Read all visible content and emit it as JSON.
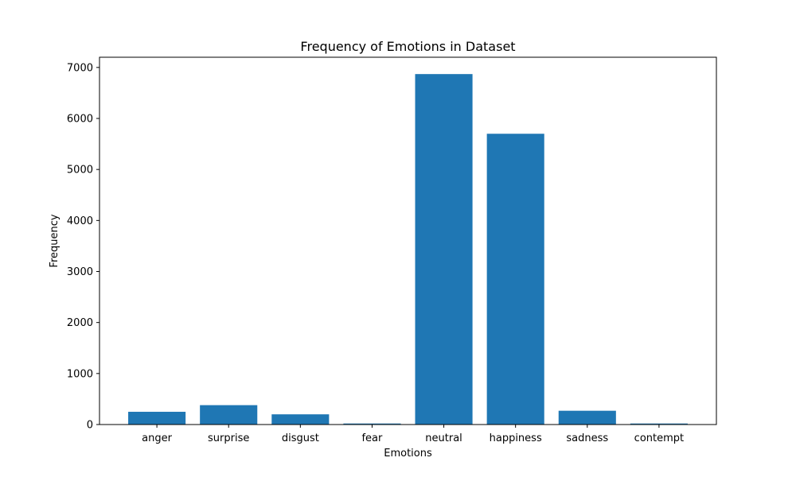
{
  "chart_data": {
    "type": "bar",
    "title": "Frequency of Emotions in Dataset",
    "xlabel": "Emotions",
    "ylabel": "Frequency",
    "categories": [
      "anger",
      "surprise",
      "disgust",
      "fear",
      "neutral",
      "happiness",
      "sadness",
      "contempt"
    ],
    "values": [
      250,
      380,
      200,
      20,
      6870,
      5700,
      270,
      20
    ],
    "ylim": [
      0,
      7200
    ],
    "yticks": [
      0,
      1000,
      2000,
      3000,
      4000,
      5000,
      6000,
      7000
    ],
    "grid": false,
    "bar_color": "#1f77b4"
  }
}
